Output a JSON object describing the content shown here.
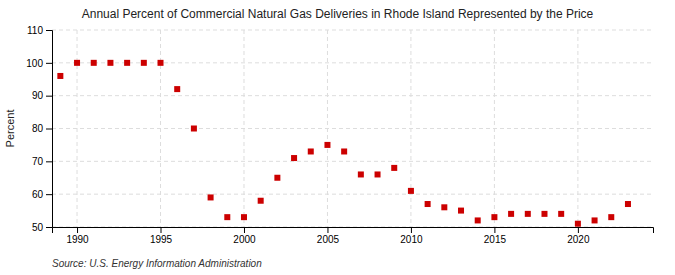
{
  "chart_data": {
    "type": "scatter",
    "title": "Annual Percent of Commercial Natural Gas Deliveries in Rhode Island Represented by the Price",
    "ylabel": "Percent",
    "source": "Source: U.S. Energy Information Administration",
    "x": [
      1989,
      1990,
      1991,
      1992,
      1993,
      1994,
      1995,
      1996,
      1997,
      1998,
      1999,
      2000,
      2001,
      2002,
      2003,
      2004,
      2005,
      2006,
      2007,
      2008,
      2009,
      2010,
      2011,
      2012,
      2013,
      2014,
      2015,
      2016,
      2017,
      2018,
      2019,
      2020,
      2021,
      2022,
      2023
    ],
    "values": [
      96,
      100,
      100,
      100,
      100,
      100,
      100,
      92,
      80,
      59,
      53,
      53,
      58,
      65,
      71,
      73,
      75,
      73,
      66,
      66,
      68,
      61,
      57,
      56,
      55,
      52,
      53,
      54,
      54,
      54,
      54,
      51,
      52,
      53,
      57
    ],
    "color": "#cc0000",
    "marker": "square",
    "xlim": [
      1988.5,
      2024.5
    ],
    "ylim": [
      50,
      110
    ],
    "xticks": [
      1990,
      1995,
      2000,
      2005,
      2010,
      2015,
      2020
    ],
    "yticks": [
      50,
      60,
      70,
      80,
      90,
      100,
      110
    ],
    "grid": true
  }
}
